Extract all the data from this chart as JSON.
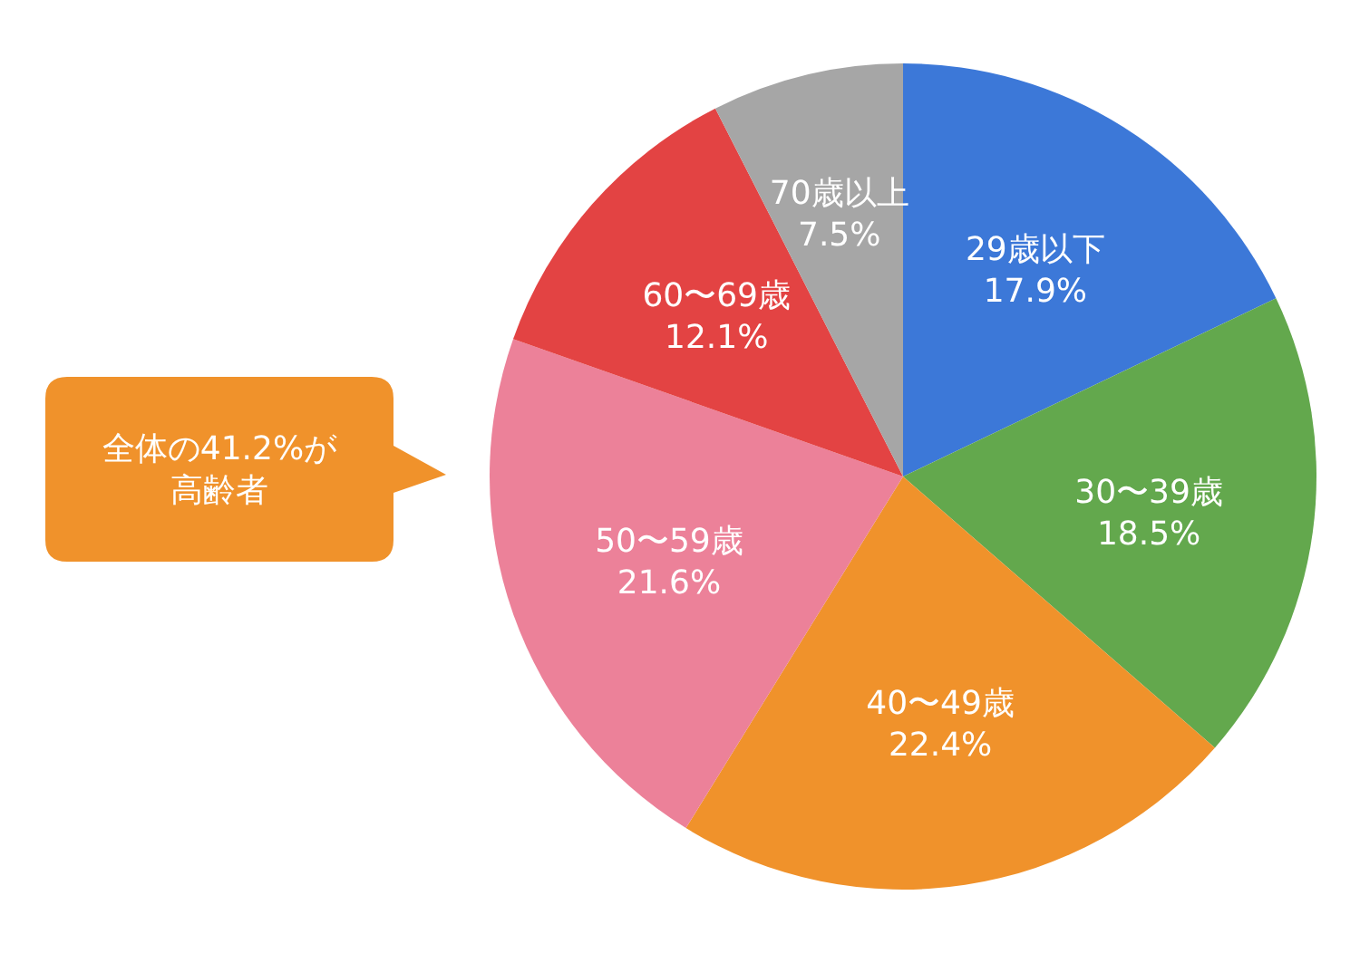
{
  "chart_data": {
    "type": "pie",
    "categories": [
      "29歳以下",
      "30〜39歳",
      "40〜49歳",
      "50〜59歳",
      "60〜69歳",
      "70歳以上"
    ],
    "values": [
      17.9,
      18.5,
      22.4,
      21.6,
      12.1,
      7.5
    ],
    "colors": [
      "#3c78d8",
      "#63a84d",
      "#f0922b",
      "#ec8199",
      "#e34343",
      "#a6a6a6"
    ],
    "value_labels": [
      "17.9%",
      "18.5%",
      "22.4%",
      "21.6%",
      "12.1%",
      "7.5%"
    ],
    "annotations": [
      "全体の41.2%が",
      "高齢者"
    ]
  }
}
